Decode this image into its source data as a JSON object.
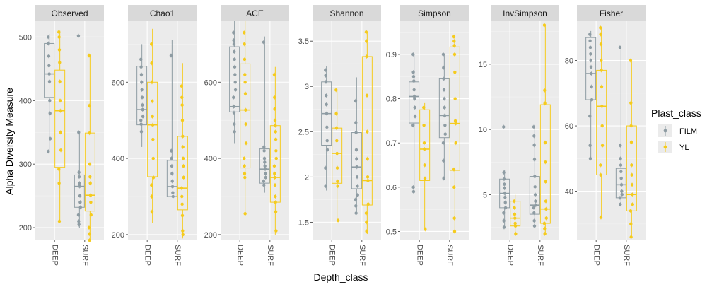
{
  "chart_data": {
    "type": "box",
    "xlabel": "Depth_class",
    "ylabel": "Alpha Diversity Measure",
    "legend": {
      "title": "Plast_class",
      "placement": "right",
      "items": [
        {
          "name": "FILM",
          "color": "#8E9CA3"
        },
        {
          "name": "YL",
          "color": "#F5CB1D"
        }
      ]
    },
    "categories": [
      "DEEP",
      "SURF"
    ],
    "grid": true,
    "colors": {
      "FILM": "#8E9CA3",
      "YL": "#F5CB1D",
      "panel_bg": "#EBEBEB",
      "strip_bg": "#D9D9D9"
    },
    "panels": [
      {
        "name": "Observed",
        "ylim": [
          180,
          525
        ],
        "yticks": [
          200,
          300,
          400,
          500
        ],
        "groups": [
          {
            "category": "DEEP",
            "class": "FILM",
            "min": 318,
            "q1": 405,
            "median": 442,
            "q3": 490,
            "max": 505,
            "points": [
              500,
              490,
              470,
              455,
              442,
              430,
              400,
              380,
              340,
              320
            ]
          },
          {
            "category": "DEEP",
            "class": "YL",
            "min": 210,
            "q1": 295,
            "median": 384,
            "q3": 448,
            "max": 510,
            "points": [
              508,
              500,
              480,
              460,
              430,
              400,
              384,
              350,
              322,
              292,
              270,
              210
            ]
          },
          {
            "category": "SURF",
            "class": "FILM",
            "min": 200,
            "q1": 232,
            "median": 265,
            "q3": 283,
            "max": 350,
            "points": [
              502,
              350,
              287,
              280,
              270,
              265,
              250,
              240,
              232,
              220,
              210,
              205
            ]
          },
          {
            "category": "SURF",
            "class": "YL",
            "min": 180,
            "q1": 226,
            "median": 251,
            "q3": 349,
            "max": 471,
            "points": [
              471,
              392,
              349,
              300,
              280,
              270,
              251,
              240,
              220,
              200,
              190,
              180
            ]
          }
        ]
      },
      {
        "name": "Chao1",
        "ylim": [
          185,
          760
        ],
        "yticks": [
          200,
          400,
          600
        ],
        "groups": [
          {
            "category": "DEEP",
            "class": "FILM",
            "min": 430,
            "q1": 488,
            "median": 528,
            "q3": 642,
            "max": 700,
            "points": [
              660,
              640,
              620,
              600,
              580,
              560,
              540,
              528,
              510,
              500,
              490,
              470
            ]
          },
          {
            "category": "DEEP",
            "class": "YL",
            "min": 230,
            "q1": 352,
            "median": 488,
            "q3": 600,
            "max": 740,
            "points": [
              700,
              650,
              600,
              550,
              510,
              488,
              450,
              400,
              350,
              330,
              300,
              260
            ]
          },
          {
            "category": "SURF",
            "class": "FILM",
            "min": 300,
            "q1": 300,
            "median": 326,
            "q3": 395,
            "max": 710,
            "points": [
              670,
              420,
              400,
              380,
              360,
              340,
              326,
              310,
              300
            ]
          },
          {
            "category": "SURF",
            "class": "YL",
            "min": 190,
            "q1": 265,
            "median": 322,
            "q3": 458,
            "max": 650,
            "points": [
              590,
              560,
              540,
              500,
              458,
              430,
              400,
              380,
              350,
              322,
              300,
              280,
              250,
              210,
              200
            ]
          }
        ]
      },
      {
        "name": "ACE",
        "ylim": [
          185,
          760
        ],
        "yticks": [
          200,
          400,
          600
        ],
        "groups": [
          {
            "category": "DEEP",
            "class": "FILM",
            "min": 440,
            "q1": 522,
            "median": 536,
            "q3": 693,
            "max": 760,
            "points": [
              730,
              710,
              700,
              680,
              660,
              640,
              620,
              600,
              580,
              560,
              536,
              520,
              490,
              470
            ]
          },
          {
            "category": "DEEP",
            "class": "YL",
            "min": 250,
            "q1": 375,
            "median": 527,
            "q3": 648,
            "max": 760,
            "points": [
              730,
              700,
              660,
              620,
              600,
              570,
              527,
              490,
              440,
              400,
              380,
              360,
              350,
              255
            ]
          },
          {
            "category": "SURF",
            "class": "FILM",
            "min": 310,
            "q1": 335,
            "median": 372,
            "q3": 425,
            "max": 720,
            "points": [
              705,
              430,
              420,
              400,
              390,
              380,
              372,
              360,
              350,
              340,
              330
            ]
          },
          {
            "category": "SURF",
            "class": "YL",
            "min": 200,
            "q1": 285,
            "median": 350,
            "q3": 486,
            "max": 640,
            "points": [
              620,
              560,
              530,
              500,
              486,
              470,
              450,
              420,
              400,
              380,
              360,
              350,
              330,
              300,
              285,
              260,
              210
            ]
          }
        ]
      },
      {
        "name": "Shannon",
        "ylim": [
          1.3,
          3.72
        ],
        "yticks": [
          1.5,
          2.0,
          2.5,
          3.0,
          3.5
        ],
        "groups": [
          {
            "category": "DEEP",
            "class": "FILM",
            "min": 1.85,
            "q1": 2.35,
            "median": 2.7,
            "q3": 3.05,
            "max": 3.22,
            "points": [
              3.18,
              3.12,
              3.05,
              2.9,
              2.8,
              2.7,
              2.55,
              2.4,
              2.3,
              2.1,
              1.9
            ]
          },
          {
            "category": "DEEP",
            "class": "YL",
            "min": 1.52,
            "q1": 1.93,
            "median": 2.26,
            "q3": 2.54,
            "max": 2.96,
            "points": [
              2.96,
              2.7,
              2.54,
              2.4,
              2.26,
              2.1,
              1.95,
              1.9,
              1.52
            ]
          },
          {
            "category": "SURF",
            "class": "FILM",
            "min": 1.6,
            "q1": 1.87,
            "median": 2.11,
            "q3": 2.49,
            "max": 3.1,
            "points": [
              2.84,
              2.6,
              2.49,
              2.3,
              2.2,
              2.11,
              2.0,
              1.9,
              1.8,
              1.75,
              1.68,
              1.6
            ]
          },
          {
            "category": "SURF",
            "class": "YL",
            "min": 1.37,
            "q1": 1.69,
            "median": 1.96,
            "q3": 3.33,
            "max": 3.6,
            "points": [
              3.6,
              3.5,
              3.33,
              2.9,
              2.5,
              2.2,
              2.0,
              1.96,
              1.7,
              1.6,
              1.5,
              1.4
            ]
          }
        ]
      },
      {
        "name": "Simpson",
        "ylim": [
          0.48,
          0.975
        ],
        "yticks": [
          0.5,
          0.6,
          0.7,
          0.8,
          0.9
        ],
        "groups": [
          {
            "category": "DEEP",
            "class": "FILM",
            "min": 0.6,
            "q1": 0.745,
            "median": 0.805,
            "q3": 0.838,
            "max": 0.9,
            "points": [
              0.9,
              0.86,
              0.85,
              0.84,
              0.82,
              0.805,
              0.8,
              0.78,
              0.76,
              0.74,
              0.6,
              0.59
            ]
          },
          {
            "category": "DEEP",
            "class": "YL",
            "min": 0.505,
            "q1": 0.615,
            "median": 0.686,
            "q3": 0.775,
            "max": 0.79,
            "points": [
              0.78,
              0.74,
              0.7,
              0.686,
              0.65,
              0.62,
              0.505
            ]
          },
          {
            "category": "SURF",
            "class": "FILM",
            "min": 0.62,
            "q1": 0.712,
            "median": 0.762,
            "q3": 0.845,
            "max": 0.9,
            "points": [
              0.9,
              0.87,
              0.845,
              0.82,
              0.8,
              0.78,
              0.762,
              0.74,
              0.72,
              0.7,
              0.66,
              0.62
            ]
          },
          {
            "category": "SURF",
            "class": "YL",
            "min": 0.5,
            "q1": 0.638,
            "median": 0.744,
            "q3": 0.917,
            "max": 0.945,
            "points": [
              0.94,
              0.93,
              0.92,
              0.9,
              0.86,
              0.8,
              0.75,
              0.744,
              0.7,
              0.64,
              0.6,
              0.53,
              0.5
            ]
          }
        ]
      },
      {
        "name": "InvSimpson",
        "ylim": [
          1.5,
          18.3
        ],
        "yticks": [
          5,
          10,
          15
        ],
        "groups": [
          {
            "category": "DEEP",
            "class": "FILM",
            "min": 2.5,
            "q1": 4.0,
            "median": 5.1,
            "q3": 6.2,
            "max": 6.9,
            "points": [
              10.2,
              6.7,
              6.2,
              5.8,
              5.5,
              5.1,
              4.8,
              4.4,
              4.0,
              3.6,
              3.0,
              2.5
            ]
          },
          {
            "category": "DEEP",
            "class": "YL",
            "min": 2.0,
            "q1": 2.6,
            "median": 3.2,
            "q3": 4.5,
            "max": 5.0,
            "points": [
              4.5,
              4.0,
              3.5,
              3.2,
              2.8,
              2.6,
              2.0
            ]
          },
          {
            "category": "SURF",
            "class": "FILM",
            "min": 2.6,
            "q1": 3.5,
            "median": 4.2,
            "q3": 6.4,
            "max": 10.2,
            "points": [
              10.2,
              9.5,
              8.8,
              7.7,
              6.4,
              5.6,
              5.0,
              4.5,
              4.2,
              4.0,
              3.6,
              3.0,
              2.6
            ]
          },
          {
            "category": "SURF",
            "class": "YL",
            "min": 2.0,
            "q1": 2.8,
            "median": 3.9,
            "q3": 11.9,
            "max": 18.0,
            "points": [
              18.0,
              13.0,
              12.0,
              9.0,
              7.5,
              6.0,
              4.5,
              3.9,
              3.2,
              2.8,
              2.4,
              2.0
            ]
          }
        ]
      },
      {
        "name": "Fisher",
        "ylim": [
          25,
          92
        ],
        "yticks": [
          40,
          60,
          80
        ],
        "groups": [
          {
            "category": "DEEP",
            "class": "FILM",
            "min": 50,
            "q1": 68,
            "median": 76,
            "q3": 87,
            "max": 89,
            "points": [
              88,
              86,
              84,
              82,
              80,
              78,
              76,
              72,
              68,
              63,
              54,
              50
            ]
          },
          {
            "category": "DEEP",
            "class": "YL",
            "min": 32,
            "q1": 45,
            "median": 66,
            "q3": 77,
            "max": 90,
            "points": [
              90,
              88,
              85,
              80,
              77,
              72,
              66,
              60,
              54,
              48,
              45,
              32
            ]
          },
          {
            "category": "SURF",
            "class": "FILM",
            "min": 36,
            "q1": 38,
            "median": 42,
            "q3": 47,
            "max": 84,
            "points": [
              84,
              54,
              50,
              48,
              46,
              44,
              42,
              40,
              39,
              38,
              36
            ]
          },
          {
            "category": "SURF",
            "class": "YL",
            "min": 26,
            "q1": 34,
            "median": 39,
            "q3": 60,
            "max": 80,
            "points": [
              80,
              67,
              60,
              55,
              48,
              45,
              42,
              39,
              36,
              34,
              30,
              26
            ]
          }
        ]
      }
    ]
  }
}
